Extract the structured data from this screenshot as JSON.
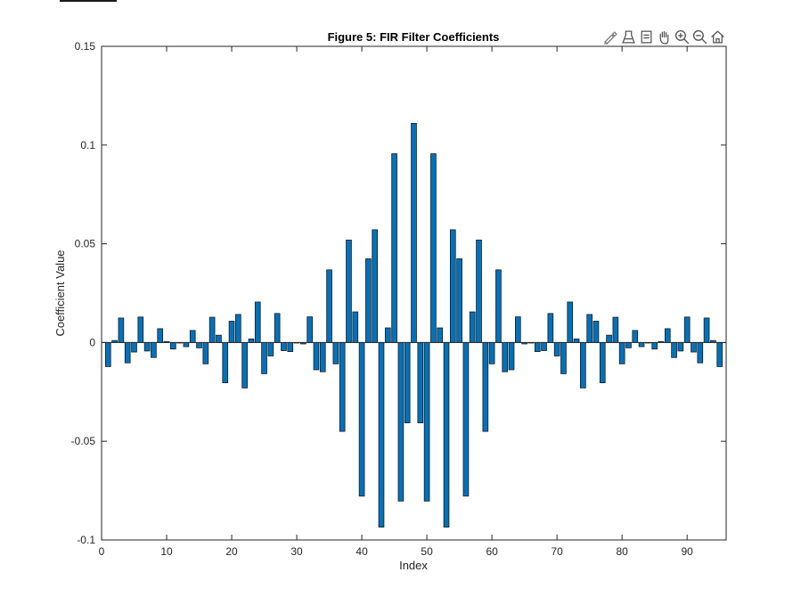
{
  "toolbar": {
    "buttons": [
      {
        "name": "brush-icon"
      },
      {
        "name": "data-tips-icon"
      },
      {
        "name": "restore-view-icon"
      },
      {
        "name": "pan-hand-icon"
      },
      {
        "name": "zoom-in-icon"
      },
      {
        "name": "zoom-out-icon"
      },
      {
        "name": "home-icon"
      }
    ]
  },
  "colors": {
    "bar_fill": "#0072BD",
    "bar_edge": "#1a1a1a",
    "axis": "#262626"
  },
  "chart_data": {
    "type": "bar",
    "title": "Figure 5: FIR Filter Coefficients",
    "xlabel": "Index",
    "ylabel": "Coefficient Value",
    "xlim": [
      0,
      96
    ],
    "ylim": [
      -0.1,
      0.15
    ],
    "xticks": [
      0,
      10,
      20,
      30,
      40,
      50,
      60,
      70,
      80,
      90
    ],
    "xtick_labels": [
      "0",
      "10",
      "20",
      "30",
      "40",
      "50",
      "60",
      "70",
      "80",
      "90"
    ],
    "yticks": [
      -0.1,
      -0.05,
      0,
      0.05,
      0.1,
      0.15
    ],
    "ytick_labels": [
      "-0.1",
      "-0.05",
      "0",
      "0.05",
      "0.1",
      "0.15"
    ],
    "grid": false,
    "x": [
      1,
      2,
      3,
      4,
      5,
      6,
      7,
      8,
      9,
      10,
      11,
      12,
      13,
      14,
      15,
      16,
      17,
      18,
      19,
      20,
      21,
      22,
      23,
      24,
      25,
      26,
      27,
      28,
      29,
      30,
      31,
      32,
      33,
      34,
      35,
      36,
      37,
      38,
      39,
      40,
      41,
      42,
      43,
      44,
      45,
      46,
      47,
      48,
      49,
      50,
      51,
      52,
      53,
      54,
      55,
      56,
      57,
      58,
      59,
      60,
      61,
      62,
      63,
      64,
      65,
      66,
      67,
      68,
      69,
      70,
      71,
      72,
      73,
      74,
      75,
      76,
      77,
      78,
      79,
      80,
      81,
      82,
      83,
      84,
      85,
      86,
      87,
      88,
      89,
      90,
      91,
      92,
      93,
      94,
      95
    ],
    "values": [
      -0.0122,
      0.001,
      0.0124,
      -0.0103,
      -0.0048,
      0.0129,
      -0.0043,
      -0.0076,
      0.007,
      0.0005,
      -0.0033,
      0.0,
      -0.0021,
      0.0061,
      -0.0027,
      -0.0108,
      0.0128,
      0.0037,
      -0.0204,
      0.0108,
      0.0142,
      -0.023,
      0.0018,
      0.0205,
      -0.0158,
      -0.0068,
      0.0147,
      -0.0041,
      -0.0046,
      0.0,
      -0.0007,
      0.013,
      -0.0138,
      -0.0148,
      0.0368,
      -0.0108,
      -0.045,
      0.0519,
      0.0155,
      -0.0778,
      0.0424,
      0.0571,
      -0.0935,
      0.0074,
      0.0956,
      -0.0803,
      -0.0407,
      0.111,
      -0.0407,
      -0.0803,
      0.0956,
      0.0074,
      -0.0935,
      0.0571,
      0.0424,
      -0.0778,
      0.0155,
      0.0519,
      -0.045,
      -0.0108,
      0.0368,
      -0.0148,
      -0.0138,
      0.013,
      -0.0007,
      0.0,
      -0.0046,
      -0.0041,
      0.0147,
      -0.0068,
      -0.0158,
      0.0205,
      0.0018,
      -0.023,
      0.0142,
      0.0108,
      -0.0204,
      0.0037,
      0.0128,
      -0.0108,
      -0.0027,
      0.0061,
      -0.0021,
      0.0,
      -0.0033,
      0.0005,
      0.007,
      -0.0076,
      -0.0043,
      0.0129,
      -0.0048,
      -0.0103,
      0.0124,
      0.001,
      -0.0122
    ]
  }
}
